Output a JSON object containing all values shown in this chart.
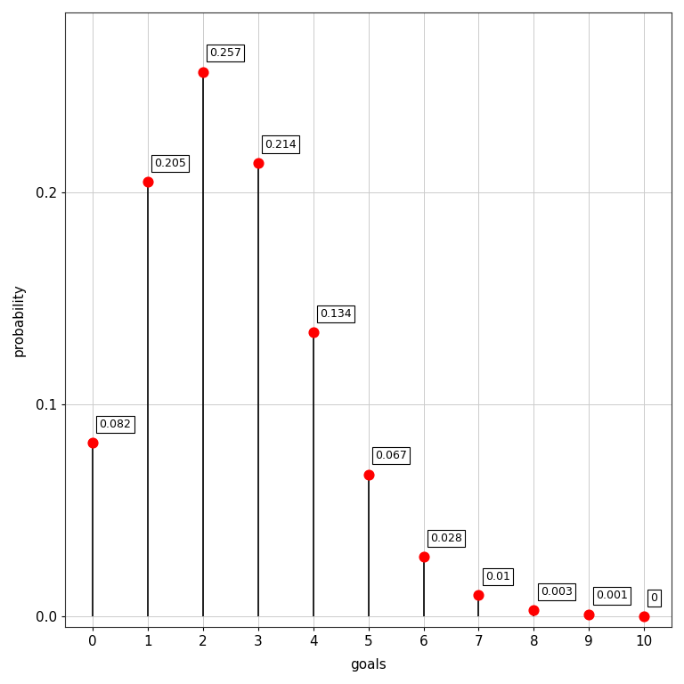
{
  "x": [
    0,
    1,
    2,
    3,
    4,
    5,
    6,
    7,
    8,
    9,
    10
  ],
  "y": [
    0.082,
    0.205,
    0.257,
    0.214,
    0.134,
    0.067,
    0.028,
    0.01,
    0.003,
    0.001,
    0.0
  ],
  "labels": [
    "0.082",
    "0.205",
    "0.257",
    "0.214",
    "0.134",
    "0.067",
    "0.028",
    "0.01",
    "0.003",
    "0.001",
    "0"
  ],
  "dot_color": "#FF0000",
  "line_color": "#000000",
  "xlabel": "goals",
  "ylabel": "probability",
  "panel_background": "#FFFFFF",
  "fig_background": "#FFFFFF",
  "grid_color": "#CCCCCC",
  "spine_color": "#333333",
  "ylim": [
    -0.005,
    0.285
  ],
  "xlim": [
    -0.5,
    10.5
  ],
  "yticks": [
    0.0,
    0.1,
    0.2
  ],
  "xticks": [
    0,
    1,
    2,
    3,
    4,
    5,
    6,
    7,
    8,
    9,
    10
  ],
  "dot_size": 60,
  "line_width": 1.2,
  "axis_font_size": 11,
  "label_font_size": 9,
  "tick_font_size": 11
}
